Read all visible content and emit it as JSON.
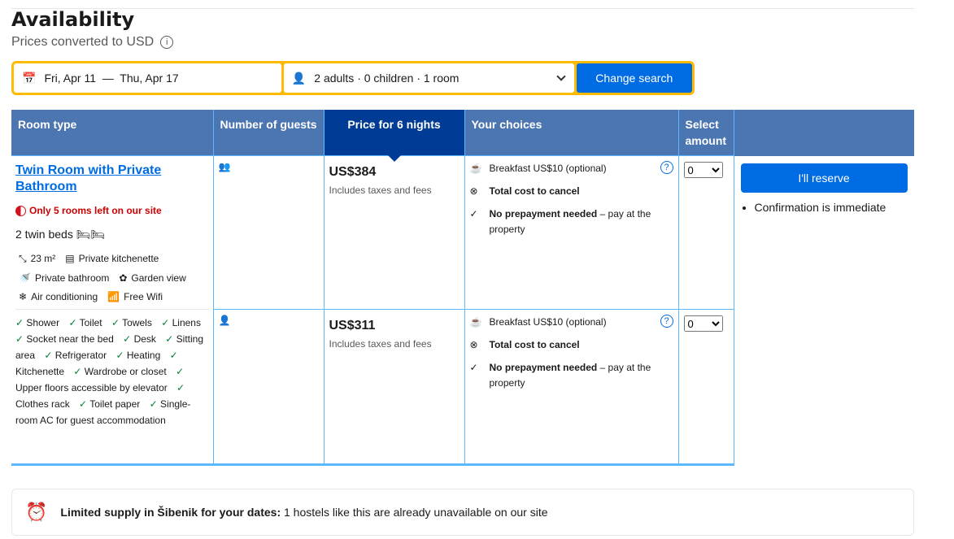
{
  "title": "Availability",
  "subtitle": "Prices converted to USD",
  "search": {
    "dates": "Fri, Apr 11  —  Thu, Apr 17",
    "guests": "2 adults · 0 children · 1 room",
    "button": "Change search",
    "border_color": "#febb02",
    "accent": "#006ce4"
  },
  "headers": [
    "Room type",
    "Number of guests",
    "Price for 6 nights",
    "Your choices",
    "Select amount"
  ],
  "room": {
    "name": "Twin Room with Private Bathroom",
    "scarcity": "Only 5 rooms left on our site",
    "beds": "2 twin beds",
    "facilities": [
      {
        "icon": "size-icon",
        "label": "23 m²"
      },
      {
        "icon": "kitchenette-icon",
        "label": "Private kitchenette"
      },
      {
        "icon": "bathroom-icon",
        "label": "Private bathroom"
      },
      {
        "icon": "garden-icon",
        "label": "Garden view"
      },
      {
        "icon": "snowflake-icon",
        "label": "Air conditioning"
      },
      {
        "icon": "wifi-icon",
        "label": "Free Wifi"
      }
    ],
    "amenities": [
      "Shower",
      "Toilet",
      "Towels",
      "Linens",
      "Socket near the bed",
      "Desk",
      "Sitting area",
      "Refrigerator",
      "Heating",
      "Kitchenette",
      "Wardrobe or closet",
      "Upper floors accessible by elevator",
      "Clothes rack",
      "Toilet paper",
      "Single-room AC for guest accommodation"
    ]
  },
  "options": [
    {
      "guests": 2,
      "price": "US$384",
      "tax": "Includes taxes and fees",
      "breakfast": "Breakfast US$10 (optional)",
      "cancel": "Total cost to cancel",
      "prepay_bold": "No prepayment needed",
      "prepay_rest": " – pay at the property",
      "amount": "0"
    },
    {
      "guests": 1,
      "price": "US$311",
      "tax": "Includes taxes and fees",
      "breakfast": "Breakfast US$10 (optional)",
      "cancel": "Total cost to cancel",
      "prepay_bold": "No prepayment needed",
      "prepay_rest": " – pay at the property",
      "amount": "0"
    }
  ],
  "reserve": {
    "button": "I'll reserve",
    "note": "Confirmation is immediate"
  },
  "alert": {
    "bold": "Limited supply in Šibenik for your dates:",
    "text": " 1 hostels like this are already unavailable on our site"
  }
}
